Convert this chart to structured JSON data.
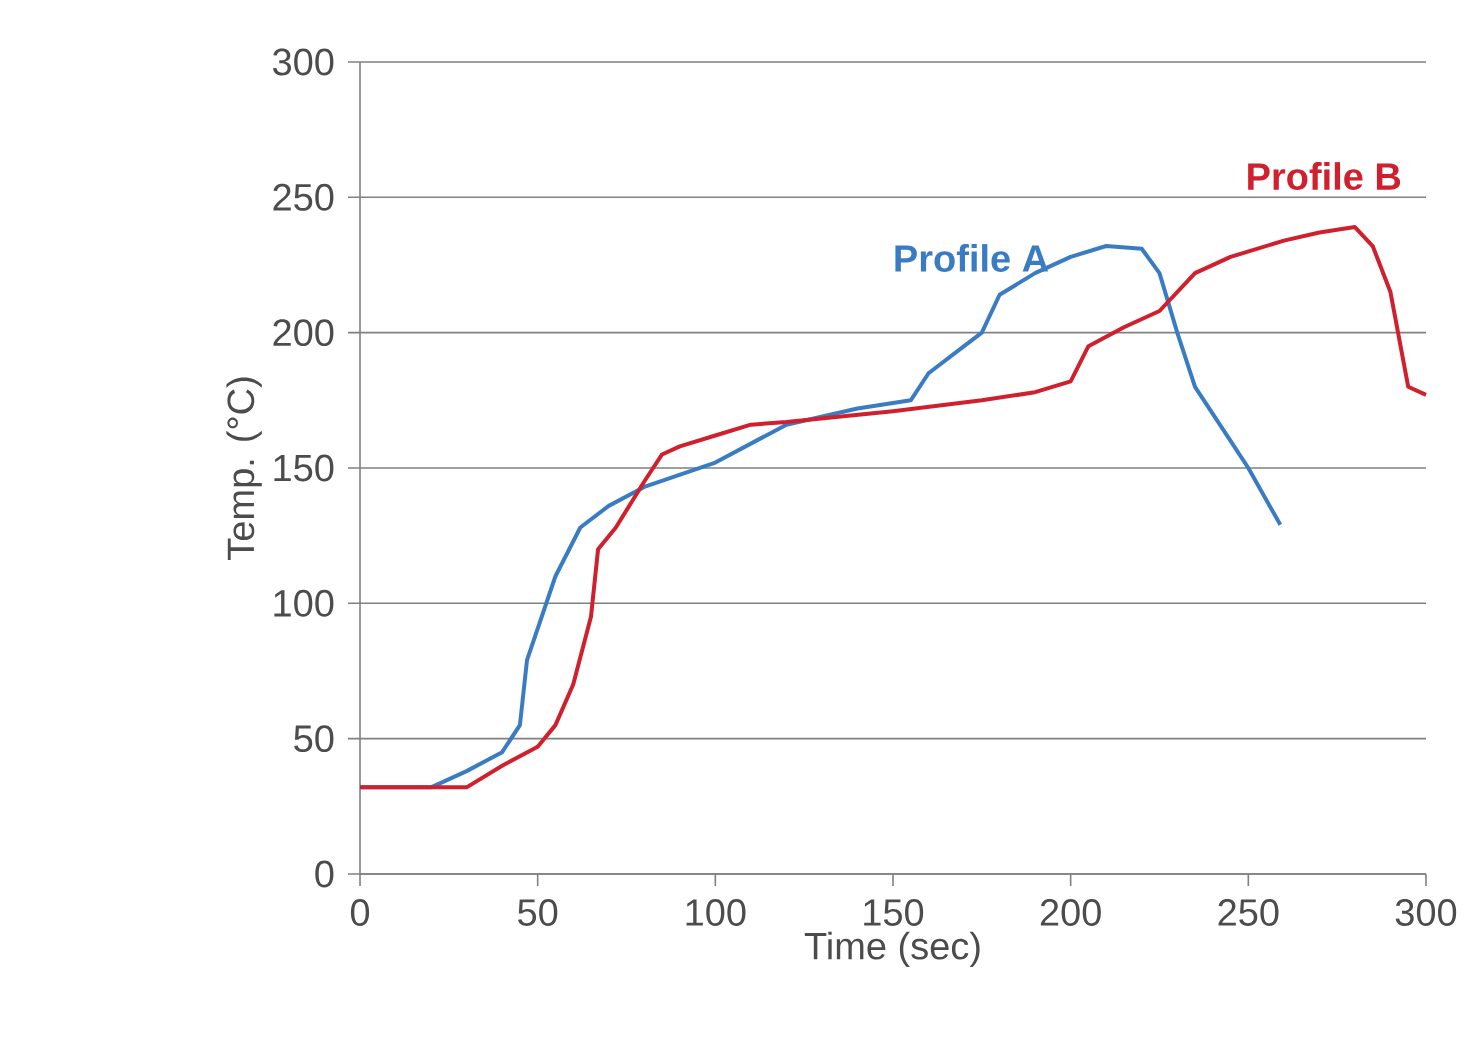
{
  "chart_data": {
    "type": "line",
    "xlabel": "Time (sec)",
    "ylabel": "Temp. (°C)",
    "xlim": [
      0,
      300
    ],
    "ylim": [
      0,
      300
    ],
    "xticks": [
      0,
      50,
      100,
      150,
      200,
      250,
      300
    ],
    "yticks": [
      0,
      50,
      100,
      150,
      200,
      250,
      300
    ],
    "grid": "y",
    "legend": false,
    "line_style": "solid",
    "marker": "none",
    "series": [
      {
        "name": "Profile A",
        "color": "#3a7cc4",
        "x": [
          0,
          20,
          30,
          40,
          45,
          47,
          55,
          62,
          70,
          80,
          100,
          120,
          140,
          155,
          160,
          170,
          175,
          180,
          190,
          200,
          210,
          220,
          225,
          230,
          235,
          245,
          250,
          259
        ],
        "values": [
          32,
          32,
          38,
          45,
          55,
          79,
          110,
          128,
          136,
          143,
          152,
          166,
          172,
          175,
          185,
          195,
          200,
          214,
          222,
          228,
          232,
          231,
          222,
          200,
          180,
          160,
          150,
          129
        ]
      },
      {
        "name": "Profile B",
        "color": "#d0202e",
        "x": [
          0,
          25,
          30,
          40,
          50,
          55,
          60,
          65,
          67,
          72,
          80,
          85,
          90,
          100,
          110,
          120,
          150,
          175,
          190,
          200,
          205,
          215,
          225,
          235,
          245,
          260,
          270,
          280,
          285,
          290,
          295,
          300
        ],
        "values": [
          32,
          32,
          32,
          40,
          47,
          55,
          70,
          95,
          120,
          128,
          145,
          155,
          158,
          162,
          166,
          167,
          171,
          175,
          178,
          182,
          195,
          202,
          208,
          222,
          228,
          234,
          237,
          239,
          232,
          215,
          180,
          177
        ]
      }
    ]
  }
}
